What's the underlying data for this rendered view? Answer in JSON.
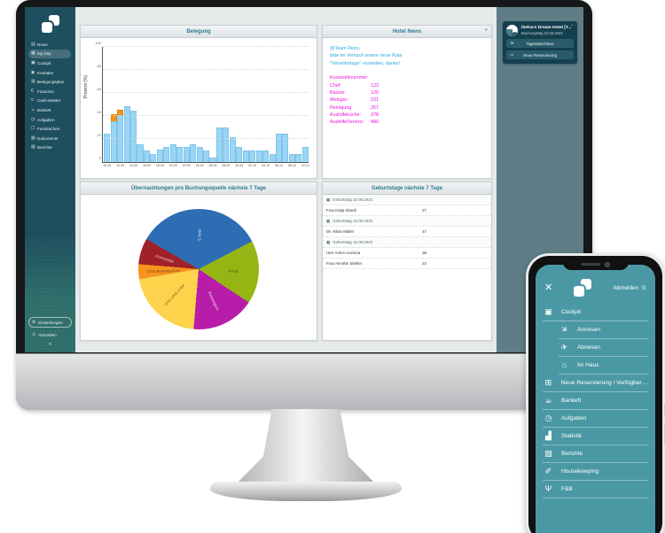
{
  "icon_glyphs": {
    "news-icon": "▤",
    "my-day-icon": "▦",
    "cockpit-icon": "▣",
    "contacts-icon": "◉",
    "occupancy-plan-icon": "▥",
    "finance-icon": "€",
    "cash-master-icon": "¤",
    "banquet-icon": "☕",
    "tasks-icon": "◷",
    "lost-found-icon": "☐",
    "documents-icon": "▧",
    "reports-icon": "▨",
    "settings-icon": "⚙",
    "logout-icon": "⊙",
    "collapse-icon": "«",
    "arrivals-icon": "✈",
    "departures-icon": "✈",
    "in-house-icon": "⌂",
    "new-reservation-icon": "⊞",
    "statistics-icon": "▟",
    "housekeeping-icon": "✐",
    "fnb-icon": "Ψ",
    "day-close-icon": "≫",
    "bed-icon": "▭",
    "calendar-icon": "▦",
    "expand-icon": "»",
    "power-icon": "⊙",
    "close-icon": "✕"
  },
  "sidebar": {
    "items": [
      {
        "label": "News",
        "icon": "news-icon",
        "selected": false
      },
      {
        "label": "My Day",
        "icon": "my-day-icon",
        "selected": true
      },
      {
        "label": "Cockpit",
        "icon": "cockpit-icon",
        "selected": false
      },
      {
        "label": "Kontakte",
        "icon": "contacts-icon",
        "selected": false
      },
      {
        "label": "Belegungsplan",
        "icon": "occupancy-plan-icon",
        "selected": false
      },
      {
        "label": "Finanzen",
        "icon": "finance-icon",
        "selected": false
      },
      {
        "label": "Cash-Master",
        "icon": "cash-master-icon",
        "selected": false
      },
      {
        "label": "Bankett",
        "icon": "banquet-icon",
        "selected": false
      },
      {
        "label": "Aufgaben",
        "icon": "tasks-icon",
        "selected": false
      },
      {
        "label": "Fundsachen",
        "icon": "lost-found-icon",
        "selected": false
      },
      {
        "label": "Dokumente",
        "icon": "documents-icon",
        "selected": false
      },
      {
        "label": "Berichte",
        "icon": "reports-icon",
        "selected": false
      }
    ],
    "settings_label": "Einstellungen",
    "logout_label": "Abmelden",
    "collapse_glyph": "«"
  },
  "occupancy_panel": {
    "title": "Belegung",
    "y_axis_label": "Prozent (%)",
    "y_ticks": [
      0,
      20,
      40,
      60,
      80,
      100
    ],
    "chart": {
      "type": "bar",
      "ylim": [
        0,
        100
      ],
      "values": [
        24,
        35,
        40,
        48,
        44,
        15,
        9,
        6,
        10,
        12,
        15,
        12,
        12,
        15,
        12,
        9,
        3,
        29,
        29,
        21,
        12,
        9,
        9,
        9,
        9,
        6,
        24,
        24,
        6,
        6,
        12
      ],
      "overbooking": [
        0,
        5,
        4,
        0,
        0,
        0,
        0,
        0,
        0,
        0,
        0,
        0,
        0,
        0,
        0,
        0,
        0,
        0,
        0,
        0,
        0,
        0,
        0,
        0,
        0,
        0,
        0,
        0,
        0,
        0,
        0
      ],
      "x_labels": [
        "10.09",
        "",
        "12.09",
        "",
        "14.09",
        "",
        "16.09",
        "",
        "18.09",
        "",
        "20.09",
        "",
        "22.09",
        "",
        "24.09",
        "",
        "26.09",
        "",
        "28.09",
        "",
        "30.09",
        "",
        "02.10",
        "",
        "04.10",
        "",
        "06.10",
        "",
        "08.10",
        "",
        "10.10"
      ],
      "bar_color": "#9ad5f5",
      "overbooking_color": "#f7941e"
    }
  },
  "news_panel": {
    "title": "Hotel News",
    "expand_glyph": "»",
    "message_lines": [
      "@Team Reze,",
      "bitte im Verkauf unsere neue Rate",
      "\"Verwöhntage\" vorstellen, danke!"
    ],
    "shortlist_title": "Kurzwahlnummer:",
    "shortlist": [
      {
        "name": "Chef:",
        "number": "123"
      },
      {
        "name": "Bäcker:",
        "number": "125"
      },
      {
        "name": "Metzger:",
        "number": "231"
      },
      {
        "name": "Reinigung:",
        "number": "257"
      },
      {
        "name": "Aushilfeküche:",
        "number": "378"
      },
      {
        "name": "AushilfeService:",
        "number": "480"
      }
    ],
    "message_color": "#29abe2",
    "shortlist_color": "#ee12dd"
  },
  "pie_panel": {
    "title": "Übernachtungen pro Buchungsquelle nächste 7 Tage",
    "chart": {
      "type": "pie",
      "start_angle": -60,
      "slices": [
        {
          "label": "E-Mail",
          "value": 34,
          "color": "#2e6db4",
          "text": "#e8eef5"
        },
        {
          "label": "Anruf",
          "value": 17,
          "color": "#96b515",
          "text": "#3c4418"
        },
        {
          "label": "Reiseagent",
          "value": 17,
          "color": "#b81daa",
          "text": "#f3dff1"
        },
        {
          "label": "OTA HRS.COM",
          "value": 21,
          "color": "#fdd34c",
          "text": "#6b5818"
        },
        {
          "label": "OTA Booking.Com",
          "value": 4,
          "color": "#f7941e",
          "text": "#5c3a10"
        },
        {
          "label": "Homepage",
          "value": 7,
          "color": "#a02128",
          "text": "#f0d9da"
        }
      ]
    }
  },
  "birthdays_panel": {
    "title": "Geburtstage nächste 7 Tage",
    "rows": [
      {
        "type": "group",
        "label": "Geburtstag 10.09.2023"
      },
      {
        "type": "item",
        "name": "Frau Katja Klarek",
        "age": "27"
      },
      {
        "type": "group",
        "label": "Geburtstag 13.09.2023"
      },
      {
        "type": "item",
        "name": "Mr. Kilian Müller",
        "age": "47"
      },
      {
        "type": "group",
        "label": "Geburtstag 15.09.2023"
      },
      {
        "type": "item",
        "name": "Herr Anton Acetona",
        "age": "36"
      },
      {
        "type": "item",
        "name": "Frau Annette Stettler",
        "age": "23"
      }
    ]
  },
  "hotel_card": {
    "hotel_name": "ibelsa's Dream Hotel [T...",
    "booking_day": "Buchungstag 10.09.2023",
    "buttons": [
      {
        "label": "Tagesabschluss",
        "icon": "day-close-icon"
      },
      {
        "label": "Neue Reservierung",
        "icon": "bed-icon"
      }
    ]
  },
  "phone": {
    "logout_label": "Abmelden",
    "menu": [
      {
        "label": "Cockpit",
        "icon": "cockpit-icon",
        "sub": false
      },
      {
        "label": "Anreisen",
        "icon": "arrivals-icon",
        "sub": true
      },
      {
        "label": "Abreisen",
        "icon": "departures-icon",
        "sub": true
      },
      {
        "label": "Im Haus",
        "icon": "in-house-icon",
        "sub": true
      },
      {
        "label": "Neue Reservierung / Verfügbark...",
        "icon": "new-reservation-icon",
        "sub": false
      },
      {
        "label": "Bankett",
        "icon": "banquet-icon",
        "sub": false
      },
      {
        "label": "Aufgaben",
        "icon": "tasks-icon",
        "sub": false
      },
      {
        "label": "Statistik",
        "icon": "statistics-icon",
        "sub": false
      },
      {
        "label": "Berichte",
        "icon": "reports-icon",
        "sub": false
      },
      {
        "label": "Housekeeping",
        "icon": "housekeeping-icon",
        "sub": false
      },
      {
        "label": "F&B",
        "icon": "fnb-icon",
        "sub": false
      }
    ]
  }
}
